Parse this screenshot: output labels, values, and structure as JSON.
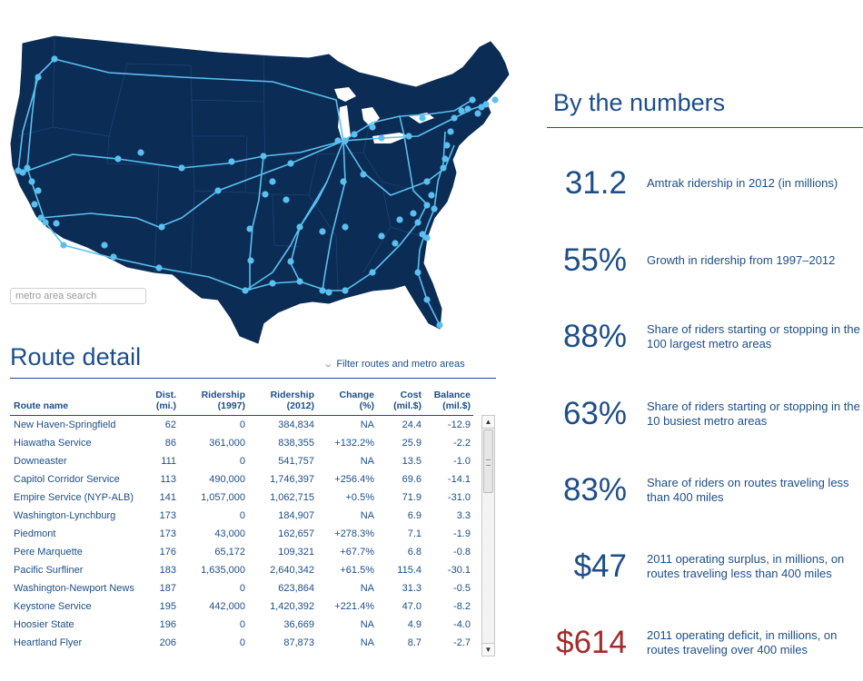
{
  "map": {
    "search_placeholder": "metro area search",
    "land_color": "#0b2c55",
    "route_color": "#5bc0ef"
  },
  "route_detail": {
    "title": "Route detail",
    "filter_label": "Filter routes and metro areas",
    "filter_icon": "chevron-down-icon",
    "columns": {
      "name": "Route name",
      "dist": [
        "Dist.",
        "(mi.)"
      ],
      "ridership_1997": [
        "Ridership",
        "(1997)"
      ],
      "ridership_2012": [
        "Ridership",
        "(2012)"
      ],
      "change": [
        "Change",
        "(%)"
      ],
      "cost": [
        "Cost",
        "(mil.$)"
      ],
      "balance": [
        "Balance",
        "(mil.$)"
      ]
    },
    "rows": [
      {
        "name": "New Haven-Springfield",
        "dist": "62",
        "r1997": "0",
        "r2012": "384,834",
        "change": "NA",
        "cost": "24.4",
        "balance": "-12.9"
      },
      {
        "name": "Hiawatha Service",
        "dist": "86",
        "r1997": "361,000",
        "r2012": "838,355",
        "change": "+132.2%",
        "cost": "25.9",
        "balance": "-2.2"
      },
      {
        "name": "Downeaster",
        "dist": "111",
        "r1997": "0",
        "r2012": "541,757",
        "change": "NA",
        "cost": "13.5",
        "balance": "-1.0"
      },
      {
        "name": "Capitol Corridor Service",
        "dist": "113",
        "r1997": "490,000",
        "r2012": "1,746,397",
        "change": "+256.4%",
        "cost": "69.6",
        "balance": "-14.1"
      },
      {
        "name": "Empire Service (NYP-ALB)",
        "dist": "141",
        "r1997": "1,057,000",
        "r2012": "1,062,715",
        "change": "+0.5%",
        "cost": "71.9",
        "balance": "-31.0"
      },
      {
        "name": "Washington-Lynchburg",
        "dist": "173",
        "r1997": "0",
        "r2012": "184,907",
        "change": "NA",
        "cost": "6.9",
        "balance": "3.3"
      },
      {
        "name": "Piedmont",
        "dist": "173",
        "r1997": "43,000",
        "r2012": "162,657",
        "change": "+278.3%",
        "cost": "7.1",
        "balance": "-1.9"
      },
      {
        "name": "Pere Marquette",
        "dist": "176",
        "r1997": "65,172",
        "r2012": "109,321",
        "change": "+67.7%",
        "cost": "6.8",
        "balance": "-0.8"
      },
      {
        "name": "Pacific Surfliner",
        "dist": "183",
        "r1997": "1,635,000",
        "r2012": "2,640,342",
        "change": "+61.5%",
        "cost": "115.4",
        "balance": "-30.1"
      },
      {
        "name": "Washington-Newport News",
        "dist": "187",
        "r1997": "0",
        "r2012": "623,864",
        "change": "NA",
        "cost": "31.3",
        "balance": "-0.5"
      },
      {
        "name": "Keystone Service",
        "dist": "195",
        "r1997": "442,000",
        "r2012": "1,420,392",
        "change": "+221.4%",
        "cost": "47.0",
        "balance": "-8.2"
      },
      {
        "name": "Hoosier State",
        "dist": "196",
        "r1997": "0",
        "r2012": "36,669",
        "change": "NA",
        "cost": "4.9",
        "balance": "-4.0"
      },
      {
        "name": "Heartland Flyer",
        "dist": "206",
        "r1997": "0",
        "r2012": "87,873",
        "change": "NA",
        "cost": "8.7",
        "balance": "-2.7"
      }
    ]
  },
  "by_the_numbers": {
    "title": "By the numbers",
    "stats": [
      {
        "value": "31.2",
        "desc": "Amtrak ridership in 2012 (in millions)"
      },
      {
        "value": "55%",
        "desc": "Growth in ridership from 1997–2012"
      },
      {
        "value": "88%",
        "desc": "Share of riders starting or stopping in the 100 largest metro areas"
      },
      {
        "value": "63%",
        "desc": "Share of riders starting or stopping in the 10 busiest metro areas"
      },
      {
        "value": "83%",
        "desc": "Share of riders on routes traveling less than 400 miles"
      },
      {
        "value": "$47",
        "desc": "2011 operating surplus, in millions, on routes traveling less than 400 miles"
      },
      {
        "value": "$614",
        "desc": "2011 operating deficit, in millions, on routes traveling over 400 miles",
        "color": "#a32c2c"
      }
    ]
  }
}
